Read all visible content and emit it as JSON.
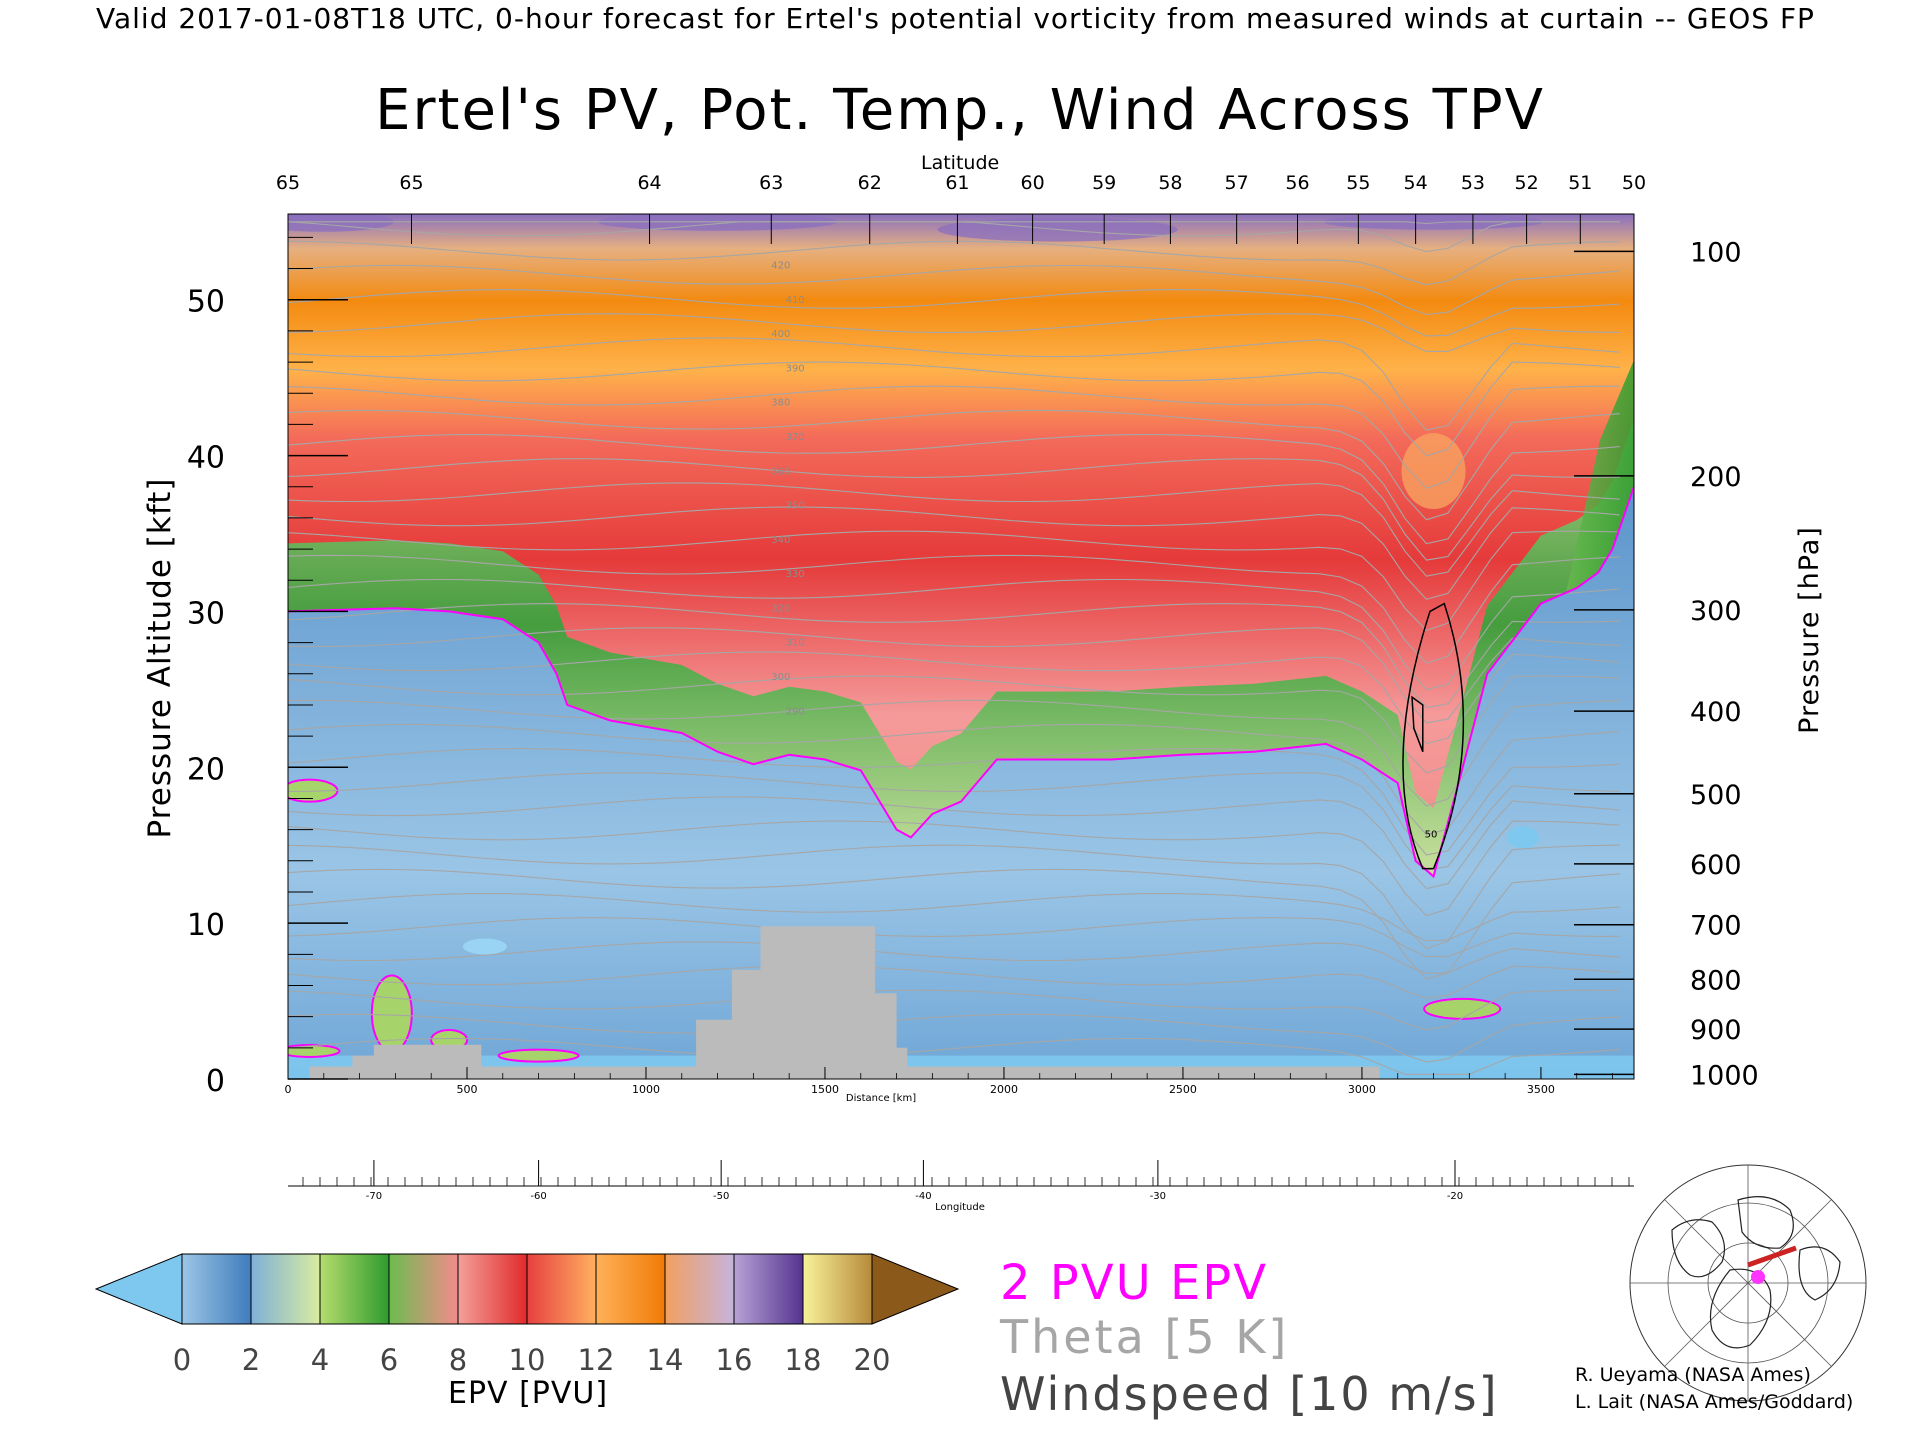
{
  "header": {
    "valid_text": "Valid 2017-01-08T18 UTC, 0-hour forecast for Ertel's potential vorticity from measured winds at curtain -- GEOS FP",
    "title": "Ertel's PV, Pot. Temp., Wind Across TPV"
  },
  "chart_data": {
    "type": "heatmap",
    "title": "Ertel's PV, Pot. Temp., Wind Across TPV",
    "xlabel": "Distance [km]",
    "ylabel": "Pressure Altitude [kft]",
    "y2label": "Pressure [hPa]",
    "top_axis_label": "Latitude",
    "bottom2_axis_label": "Longitude",
    "xlim": [
      0,
      3760
    ],
    "ylim": [
      0,
      55.5
    ],
    "x_ticks": [
      0,
      500,
      1000,
      1500,
      2000,
      2500,
      3000,
      3500
    ],
    "y_ticks": [
      0,
      10,
      20,
      30,
      40,
      50
    ],
    "pressure_ticks": [
      {
        "hPa": "100",
        "kft": 53.1
      },
      {
        "hPa": "200",
        "kft": 38.7
      },
      {
        "hPa": "300",
        "kft": 30.1
      },
      {
        "hPa": "400",
        "kft": 23.6
      },
      {
        "hPa": "500",
        "kft": 18.3
      },
      {
        "hPa": "600",
        "kft": 13.8
      },
      {
        "hPa": "700",
        "kft": 9.9
      },
      {
        "hPa": "800",
        "kft": 6.4
      },
      {
        "hPa": "900",
        "kft": 3.2
      },
      {
        "hPa": "1000",
        "kft": 0.3
      }
    ],
    "latitude_ticks": [
      {
        "label": "65",
        "km": 0
      },
      {
        "label": "65",
        "km": 345
      },
      {
        "label": "64",
        "km": 1010
      },
      {
        "label": "63",
        "km": 1350
      },
      {
        "label": "62",
        "km": 1625
      },
      {
        "label": "61",
        "km": 1870
      },
      {
        "label": "60",
        "km": 2080
      },
      {
        "label": "59",
        "km": 2280
      },
      {
        "label": "58",
        "km": 2465
      },
      {
        "label": "57",
        "km": 2650
      },
      {
        "label": "56",
        "km": 2820
      },
      {
        "label": "55",
        "km": 2990
      },
      {
        "label": "54",
        "km": 3150
      },
      {
        "label": "53",
        "km": 3310
      },
      {
        "label": "52",
        "km": 3460
      },
      {
        "label": "51",
        "km": 3610
      },
      {
        "label": "50",
        "km": 3760
      }
    ],
    "longitude_ticks": [
      {
        "label": "-70",
        "km": 240
      },
      {
        "label": "-60",
        "km": 700
      },
      {
        "label": "-50",
        "km": 1210
      },
      {
        "label": "-40",
        "km": 1775
      },
      {
        "label": "-30",
        "km": 2430
      },
      {
        "label": "-20",
        "km": 3260
      }
    ],
    "pv_2pvu_tropopause": {
      "distance_km": [
        0,
        300,
        450,
        600,
        700,
        750,
        780,
        900,
        1100,
        1200,
        1300,
        1400,
        1500,
        1600,
        1700,
        1740,
        1800,
        1880,
        1980,
        2100,
        2300,
        2500,
        2700,
        2900,
        3000,
        3100,
        3150,
        3200,
        3270,
        3350,
        3500,
        3600,
        3660,
        3700,
        3760
      ],
      "altitude_kft": [
        30.0,
        30.2,
        30.0,
        29.5,
        28.0,
        26.0,
        24.0,
        23.0,
        22.2,
        21.0,
        20.2,
        20.8,
        20.5,
        19.8,
        16.0,
        15.5,
        17.0,
        17.8,
        20.5,
        20.5,
        20.5,
        20.8,
        21.0,
        21.5,
        20.5,
        19.0,
        14.0,
        13.0,
        19.0,
        26.0,
        30.5,
        31.5,
        32.5,
        34.0,
        38.0
      ]
    },
    "ground_profile": {
      "distance_km": [
        0,
        60,
        180,
        240,
        430,
        540,
        1140,
        1240,
        1320,
        1600,
        1640,
        1700,
        1730,
        3050
      ],
      "altitude_kft": [
        0,
        0.8,
        1.5,
        2.2,
        2.2,
        0.8,
        3.8,
        7.0,
        9.8,
        9.8,
        5.5,
        2.0,
        0.8,
        0
      ],
      "color": "#bbbbbb"
    },
    "theta_contour_labels": [
      "420",
      "410",
      "400",
      "390",
      "380",
      "370",
      "360",
      "350",
      "340",
      "330",
      "320",
      "310",
      "300",
      "290"
    ],
    "windspeed_contour_label": "50",
    "colorbar": {
      "label": "EPV [PVU]",
      "ticks": [
        "0",
        "2",
        "4",
        "6",
        "8",
        "10",
        "12",
        "14",
        "16",
        "18",
        "20"
      ],
      "levels": [
        0,
        2,
        4,
        6,
        8,
        10,
        12,
        14,
        16,
        18,
        20
      ],
      "under_color": "#7ec8f0",
      "over_color": "#8b5a1a",
      "bands": [
        {
          "from": 0,
          "to": 2,
          "colors": [
            "#9cc6e6",
            "#3f7cbd"
          ]
        },
        {
          "from": 2,
          "to": 4,
          "colors": [
            "#7fb0d8",
            "#d9eca0"
          ]
        },
        {
          "from": 4,
          "to": 6,
          "colors": [
            "#b6dc6e",
            "#2e9b2e"
          ]
        },
        {
          "from": 6,
          "to": 8,
          "colors": [
            "#6cbc50",
            "#f28b8b"
          ]
        },
        {
          "from": 8,
          "to": 10,
          "colors": [
            "#f3a09a",
            "#e12a2a"
          ]
        },
        {
          "from": 10,
          "to": 12,
          "colors": [
            "#e64040",
            "#ffb060"
          ]
        },
        {
          "from": 12,
          "to": 14,
          "colors": [
            "#ffb15a",
            "#f07b06"
          ]
        },
        {
          "from": 14,
          "to": 16,
          "colors": [
            "#f2a060",
            "#c6b4dc"
          ]
        },
        {
          "from": 16,
          "to": 18,
          "colors": [
            "#b7a2d4",
            "#55338f"
          ]
        },
        {
          "from": 18,
          "to": 20,
          "colors": [
            "#f9f39a",
            "#b68a3a"
          ]
        }
      ]
    },
    "colors": {
      "pv_contour": "#ff00ff",
      "theta_contour": "#a6a6a6",
      "wind_contour": "#000000"
    }
  },
  "legend": {
    "pv_text": "2 PVU EPV",
    "theta_text": "Theta [5 K]",
    "wind_text": "Windspeed [10 m/s]"
  },
  "credits": {
    "line1": "R. Ueyama (NASA Ames)",
    "line2": "L. Lait (NASA Ames/Goddard)"
  },
  "map_inset": {
    "point_color": "#ff33ff",
    "track_color": "#cc2222"
  }
}
